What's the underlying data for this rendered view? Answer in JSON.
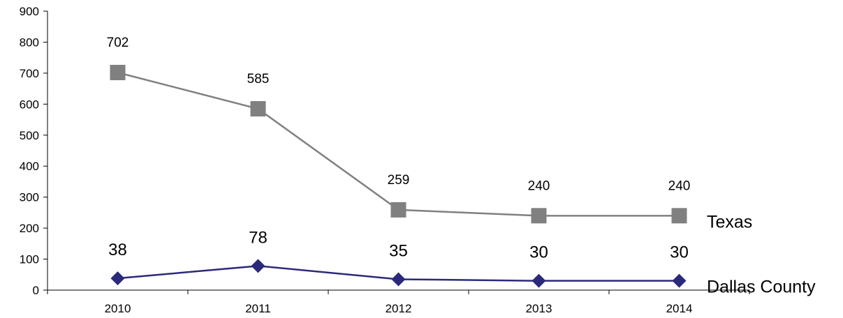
{
  "chart_data": {
    "type": "line",
    "title": "",
    "xlabel": "",
    "ylabel": "",
    "categories": [
      "2010",
      "2011",
      "2012",
      "2013",
      "2014"
    ],
    "ylim": [
      0,
      900
    ],
    "yticks": [
      "0",
      "100",
      "200",
      "300",
      "400",
      "500",
      "600",
      "700",
      "800",
      "900"
    ],
    "grid": false,
    "legend": "series names at right end of lines",
    "series": [
      {
        "name": "Texas",
        "values": [
          702,
          585,
          259,
          240,
          240
        ],
        "labels": [
          "702",
          "585",
          "259",
          "240",
          "240"
        ],
        "color": "#808080",
        "marker": "square"
      },
      {
        "name": "Dallas County",
        "values": [
          38,
          78,
          35,
          30,
          30
        ],
        "labels": [
          "38",
          "78",
          "35",
          "30",
          "30"
        ],
        "color": "#2b2a7a",
        "marker": "diamond"
      }
    ]
  }
}
